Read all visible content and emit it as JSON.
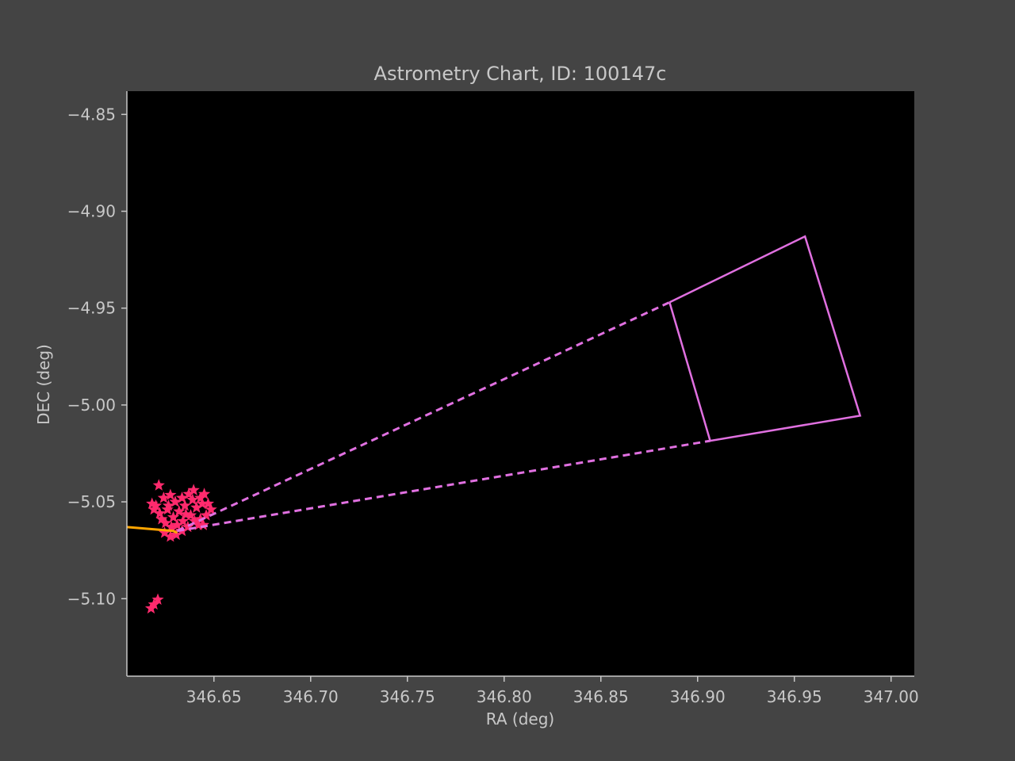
{
  "colors": {
    "figure_bg": "#444444",
    "axes_bg": "#000000",
    "text": "#c8c8c8",
    "stars": "#ff2a6d",
    "footprint": "#e070e0",
    "track": "#ffa500"
  },
  "chart_data": {
    "type": "scatter",
    "title": "Astrometry Chart, ID: 100147c",
    "xlabel": "RA (deg)",
    "ylabel": "DEC (deg)",
    "xlim": [
      346.605,
      347.012
    ],
    "ylim": [
      -5.14,
      -4.838
    ],
    "grid": false,
    "x_ticks": [
      346.65,
      346.7,
      346.75,
      346.8,
      346.85,
      346.9,
      346.95,
      347.0
    ],
    "x_tick_labels": [
      "346.65",
      "346.70",
      "346.75",
      "346.80",
      "346.85",
      "346.90",
      "346.95",
      "347.00"
    ],
    "y_ticks": [
      -4.85,
      -4.9,
      -4.95,
      -5.0,
      -5.05,
      -5.1
    ],
    "y_tick_labels": [
      "−4.85",
      "−4.90",
      "−4.95",
      "−5.00",
      "−5.05",
      "−5.10"
    ],
    "stars": [
      [
        346.6215,
        -5.0415
      ],
      [
        346.618,
        -5.051
      ],
      [
        346.624,
        -5.048
      ],
      [
        346.6275,
        -5.0465
      ],
      [
        346.63,
        -5.05
      ],
      [
        346.626,
        -5.054
      ],
      [
        346.622,
        -5.056
      ],
      [
        346.62,
        -5.052
      ],
      [
        346.629,
        -5.058
      ],
      [
        346.632,
        -5.055
      ],
      [
        346.635,
        -5.052
      ],
      [
        346.637,
        -5.046
      ],
      [
        346.639,
        -5.049
      ],
      [
        346.641,
        -5.053
      ],
      [
        346.643,
        -5.048
      ],
      [
        346.645,
        -5.046
      ],
      [
        346.647,
        -5.051
      ],
      [
        346.6485,
        -5.054
      ],
      [
        346.646,
        -5.057
      ],
      [
        346.643,
        -5.059
      ],
      [
        346.64,
        -5.06
      ],
      [
        346.638,
        -5.057
      ],
      [
        346.634,
        -5.06
      ],
      [
        346.631,
        -5.062
      ],
      [
        346.628,
        -5.063
      ],
      [
        346.625,
        -5.061
      ],
      [
        346.623,
        -5.059
      ],
      [
        346.6245,
        -5.066
      ],
      [
        346.6275,
        -5.068
      ],
      [
        346.6305,
        -5.067
      ],
      [
        346.6335,
        -5.065
      ],
      [
        346.6365,
        -5.063
      ],
      [
        346.642,
        -5.062
      ],
      [
        346.6445,
        -5.062
      ],
      [
        346.619,
        -5.054
      ],
      [
        346.6265,
        -5.052
      ],
      [
        346.6335,
        -5.048
      ],
      [
        346.6395,
        -5.044
      ],
      [
        346.644,
        -5.051
      ],
      [
        346.6355,
        -5.0565
      ],
      [
        346.621,
        -5.1005
      ],
      [
        346.619,
        -5.103
      ],
      [
        346.6175,
        -5.105
      ]
    ],
    "footprint": [
      [
        346.8855,
        -4.947
      ],
      [
        346.9555,
        -4.913
      ],
      [
        346.984,
        -5.0055
      ],
      [
        346.9065,
        -5.0185
      ],
      [
        346.8855,
        -4.947
      ]
    ],
    "cone_lines": [
      [
        [
          346.631,
          -5.065
        ],
        [
          346.8855,
          -4.947
        ]
      ],
      [
        [
          346.631,
          -5.065
        ],
        [
          346.9065,
          -5.0185
        ]
      ]
    ],
    "track": [
      [
        346.605,
        -5.063
      ],
      [
        346.629,
        -5.065
      ],
      [
        346.631,
        -5.066
      ]
    ]
  }
}
